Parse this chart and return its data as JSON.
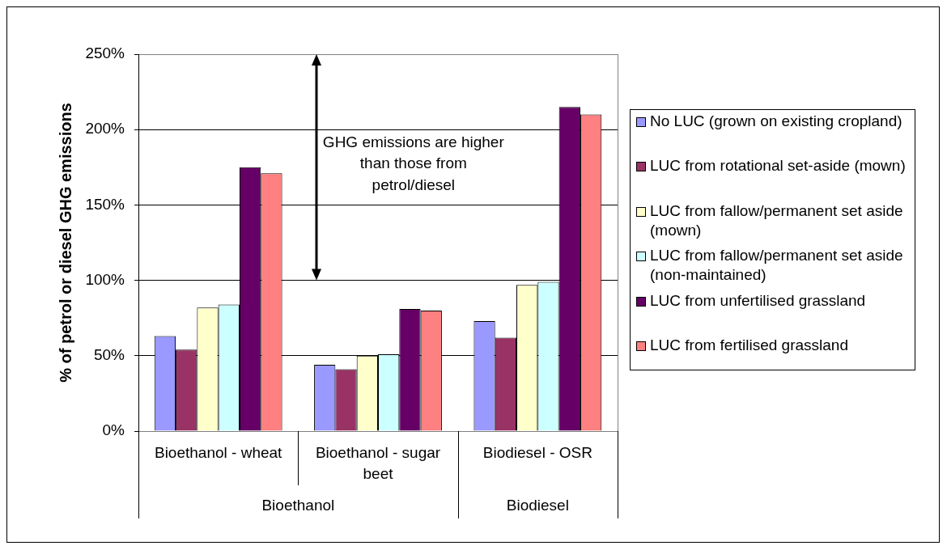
{
  "chart_data": {
    "type": "bar",
    "categories": [
      "Bioethanol - wheat",
      "Bioethanol - sugar beet",
      "Biodiesel - OSR"
    ],
    "series": [
      {
        "name": "No LUC (grown on existing cropland)",
        "color": "#9999ff",
        "values": [
          63,
          44,
          73
        ]
      },
      {
        "name": "LUC from rotational set-aside (mown)",
        "color": "#993366",
        "values": [
          54,
          41,
          62
        ]
      },
      {
        "name": "LUC from fallow/permanent set aside (mown)",
        "color": "#ffffcc",
        "values": [
          82,
          50,
          97
        ]
      },
      {
        "name": "LUC from fallow/permanent set aside (non-maintained)",
        "color": "#ccffff",
        "values": [
          84,
          51,
          99
        ]
      },
      {
        "name": "LUC from unfertilised grassland",
        "color": "#660066",
        "values": [
          175,
          81,
          215
        ]
      },
      {
        "name": "LUC from fertilised grassland",
        "color": "#ff8080",
        "values": [
          171,
          80,
          210
        ]
      }
    ],
    "ylabel": "% of petrol or diesel GHG emissions",
    "ylim": [
      0,
      250
    ],
    "yticks": [
      {
        "value": 0,
        "label": "0%"
      },
      {
        "value": 50,
        "label": "50%"
      },
      {
        "value": 100,
        "label": "100%"
      },
      {
        "value": 150,
        "label": "150%"
      },
      {
        "value": 200,
        "label": "200%"
      },
      {
        "value": 250,
        "label": "250%"
      }
    ],
    "grid": "y",
    "legend": "right",
    "annotations": [
      "GHG emissions are higher than those from petrol/diesel",
      "Bioethanol",
      "Biodiesel"
    ]
  }
}
